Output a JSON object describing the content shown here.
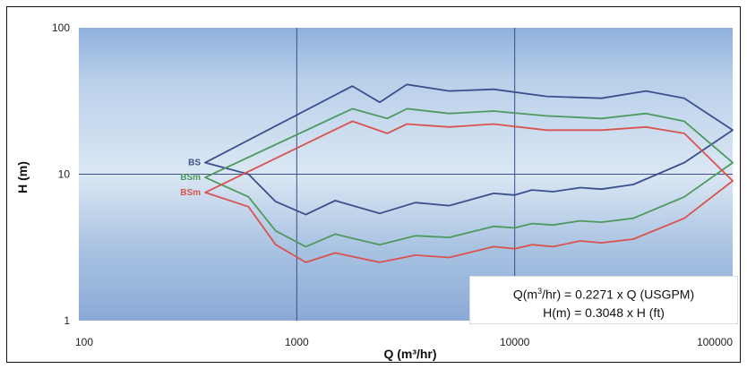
{
  "chart_data": {
    "type": "area",
    "xlabel": "Q (m³/hr)",
    "ylabel": "H (m)",
    "x_scale": "log",
    "y_scale": "log",
    "xlim": [
      100,
      100000
    ],
    "ylim": [
      1,
      100
    ],
    "x_ticks": [
      "100",
      "1000",
      "10000",
      "100000"
    ],
    "y_ticks": [
      "100",
      "10",
      "1"
    ],
    "grid": true,
    "series": [
      {
        "name": "BS",
        "color": "#3b4f8c",
        "upper": [
          [
            380,
            12
          ],
          [
            1800,
            40
          ],
          [
            2400,
            31
          ],
          [
            3200,
            41
          ],
          [
            5000,
            37
          ],
          [
            8000,
            38
          ],
          [
            14000,
            34
          ],
          [
            25000,
            33
          ],
          [
            40000,
            37
          ],
          [
            60000,
            33
          ],
          [
            100000,
            20
          ]
        ],
        "lower": [
          [
            380,
            12
          ],
          [
            600,
            10
          ],
          [
            800,
            6.5
          ],
          [
            1100,
            5.3
          ],
          [
            1500,
            6.6
          ],
          [
            2400,
            5.4
          ],
          [
            3500,
            6.4
          ],
          [
            5000,
            6.1
          ],
          [
            8000,
            7.4
          ],
          [
            10000,
            7.2
          ],
          [
            12000,
            7.8
          ],
          [
            15000,
            7.6
          ],
          [
            20000,
            8.1
          ],
          [
            25000,
            7.9
          ],
          [
            35000,
            8.5
          ],
          [
            60000,
            12
          ],
          [
            100000,
            20
          ]
        ]
      },
      {
        "name": "BSm",
        "color": "#4e9a5e",
        "upper": [
          [
            380,
            9.5
          ],
          [
            1800,
            28
          ],
          [
            2600,
            24
          ],
          [
            3200,
            28
          ],
          [
            5000,
            26
          ],
          [
            8000,
            27
          ],
          [
            14000,
            25
          ],
          [
            25000,
            24
          ],
          [
            40000,
            26
          ],
          [
            60000,
            23
          ],
          [
            100000,
            12
          ]
        ],
        "lower": [
          [
            380,
            9.5
          ],
          [
            600,
            7
          ],
          [
            800,
            4.1
          ],
          [
            1100,
            3.2
          ],
          [
            1500,
            3.9
          ],
          [
            2400,
            3.3
          ],
          [
            3500,
            3.8
          ],
          [
            5000,
            3.7
          ],
          [
            8000,
            4.4
          ],
          [
            10000,
            4.3
          ],
          [
            12000,
            4.6
          ],
          [
            15000,
            4.5
          ],
          [
            20000,
            4.8
          ],
          [
            25000,
            4.7
          ],
          [
            35000,
            5
          ],
          [
            60000,
            7
          ],
          [
            100000,
            12
          ]
        ]
      },
      {
        "name": "BSm",
        "color": "#d9534f",
        "upper": [
          [
            380,
            7.5
          ],
          [
            1800,
            23
          ],
          [
            2600,
            19
          ],
          [
            3200,
            22
          ],
          [
            5000,
            21
          ],
          [
            8000,
            22
          ],
          [
            14000,
            20
          ],
          [
            25000,
            20
          ],
          [
            40000,
            21
          ],
          [
            60000,
            19
          ],
          [
            100000,
            9
          ]
        ],
        "lower": [
          [
            380,
            7.5
          ],
          [
            600,
            6
          ],
          [
            800,
            3.3
          ],
          [
            1100,
            2.5
          ],
          [
            1500,
            2.9
          ],
          [
            2400,
            2.5
          ],
          [
            3500,
            2.8
          ],
          [
            5000,
            2.7
          ],
          [
            8000,
            3.2
          ],
          [
            10000,
            3.1
          ],
          [
            12000,
            3.3
          ],
          [
            15000,
            3.2
          ],
          [
            20000,
            3.5
          ],
          [
            25000,
            3.4
          ],
          [
            35000,
            3.6
          ],
          [
            60000,
            5
          ],
          [
            100000,
            9
          ]
        ]
      }
    ],
    "annotations": {
      "line1_prefix": "Q(m",
      "line1_sup": "3",
      "line1_suffix": "/hr) = 0.2271 x Q (USGPM)",
      "line2": "H(m) = 0.3048 x H (ft)"
    }
  }
}
